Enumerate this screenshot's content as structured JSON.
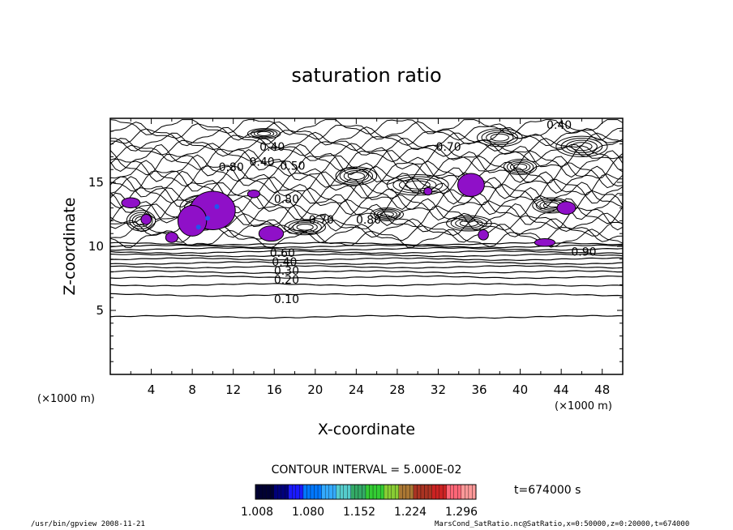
{
  "chart_data": {
    "type": "contour",
    "title": "saturation ratio",
    "xlabel": "X-coordinate",
    "ylabel": "Z-coordinate",
    "x_unit": "(×1000 m)",
    "y_unit": "(×1000 m)",
    "xlim": [
      0,
      50
    ],
    "ylim": [
      0,
      20
    ],
    "x_ticks": [
      4,
      8,
      12,
      16,
      20,
      24,
      28,
      32,
      36,
      40,
      44,
      48
    ],
    "y_ticks": [
      5,
      10,
      15
    ],
    "contour_labels": [
      {
        "text": "0.40",
        "x": 43.8,
        "y": 19.5
      },
      {
        "text": "0.40",
        "x": 15.8,
        "y": 17.8
      },
      {
        "text": "0.70",
        "x": 33.0,
        "y": 17.8
      },
      {
        "text": "0.80",
        "x": 11.8,
        "y": 16.2
      },
      {
        "text": "0.40",
        "x": 14.8,
        "y": 16.6
      },
      {
        "text": "0.50",
        "x": 17.8,
        "y": 16.3
      },
      {
        "text": "0.80",
        "x": 17.2,
        "y": 13.7
      },
      {
        "text": "0.70",
        "x": 20.6,
        "y": 12.1
      },
      {
        "text": "0.80",
        "x": 25.2,
        "y": 12.1
      },
      {
        "text": "0.90",
        "x": 46.2,
        "y": 9.6
      },
      {
        "text": "0.60",
        "x": 16.8,
        "y": 9.5
      },
      {
        "text": "0.40",
        "x": 17.0,
        "y": 8.8
      },
      {
        "text": "0.30",
        "x": 17.2,
        "y": 8.1
      },
      {
        "text": "0.20",
        "x": 17.2,
        "y": 7.4
      },
      {
        "text": "0.10",
        "x": 17.2,
        "y": 5.9
      }
    ],
    "supersaturated_fill_color": "#8f10c8",
    "contour_interval_label": "CONTOUR INTERVAL = 5.000E-02",
    "colorbar": {
      "ticks": [
        "1.008",
        "1.080",
        "1.152",
        "1.224",
        "1.296"
      ],
      "colors": [
        "#000033",
        "#00007a",
        "#1a1aff",
        "#0077ff",
        "#33aaff",
        "#55cccc",
        "#33aa66",
        "#33cc33",
        "#88cc33",
        "#aa7733",
        "#aa3322",
        "#cc2222",
        "#ff6677",
        "#ff9999"
      ]
    },
    "time_label": "t=674000 s"
  },
  "footer": {
    "left": "/usr/bin/gpview  2008-11-21",
    "right": "MarsCond_SatRatio.nc@SatRatio,x=0:50000,z=0:20000,t=674000"
  }
}
